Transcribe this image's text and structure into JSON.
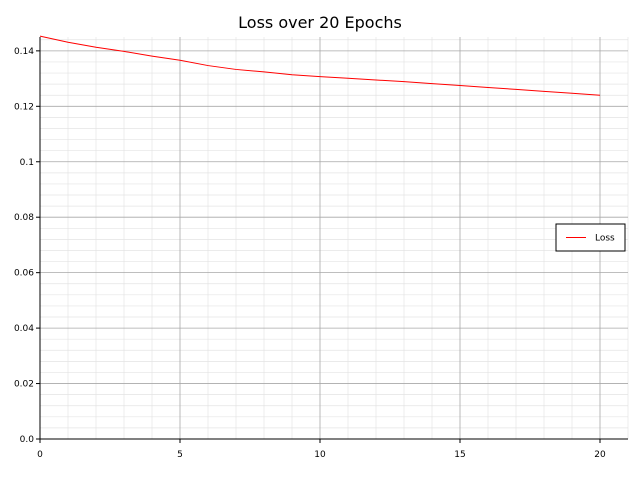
{
  "chart_data": {
    "type": "line",
    "title": "Loss over 20 Epochs",
    "xlabel": "",
    "ylabel": "",
    "xlim": [
      0,
      21
    ],
    "ylim": [
      0,
      0.145
    ],
    "xticks": [
      0,
      5,
      10,
      15,
      20
    ],
    "xtick_labels": [
      "0",
      "5",
      "10",
      "15",
      "20"
    ],
    "yticks": [
      0,
      0.02,
      0.04,
      0.06,
      0.08,
      0.1,
      0.12,
      0.14
    ],
    "ytick_labels": [
      "0.0",
      "0.02",
      "0.04",
      "0.06",
      "0.08",
      "0.1",
      "0.12",
      "0.14"
    ],
    "grid": true,
    "minor_grid": true,
    "legend_position": "right",
    "series": [
      {
        "name": "Loss",
        "color": "#ff0000",
        "x": [
          0,
          1,
          2,
          3,
          4,
          5,
          6,
          7,
          8,
          9,
          10,
          11,
          12,
          13,
          14,
          15,
          16,
          17,
          18,
          19,
          20
        ],
        "values": [
          0.1453,
          0.1431,
          0.1413,
          0.1398,
          0.1381,
          0.1366,
          0.1347,
          0.1333,
          0.1324,
          0.1314,
          0.1307,
          0.1301,
          0.1295,
          0.1289,
          0.1282,
          0.1275,
          0.1268,
          0.1261,
          0.1254,
          0.1247,
          0.124
        ]
      }
    ]
  }
}
